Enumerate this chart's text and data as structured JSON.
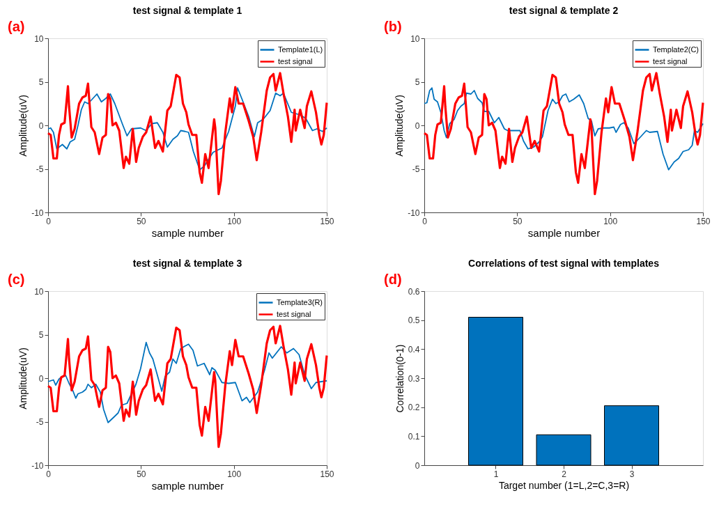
{
  "chart_data": [
    {
      "type": "line",
      "title": "test signal & template 1",
      "xlabel": "sample number",
      "ylabel": "Amplitude(uV)",
      "annotations": [
        "(a)"
      ],
      "xlim": [
        0,
        150
      ],
      "xticks": [
        0,
        50,
        100,
        150
      ],
      "ylim": [
        -10,
        10
      ],
      "yticks": [
        -10,
        -5,
        0,
        5,
        10
      ],
      "grid": false,
      "legend": "top right",
      "line_style": "solid",
      "series": [
        {
          "name": "Template1(L)",
          "color": "#0072bd",
          "x": [
            0,
            1.4,
            2.9,
            4.7,
            7.7,
            10.1,
            11.9,
            14.3,
            16.1,
            17.9,
            19.7,
            21.5,
            23.3,
            26.3,
            28.7,
            31.1,
            33.5,
            35.9,
            40.1,
            42.5,
            44.9,
            49.8,
            52.8,
            55.8,
            58.8,
            61.8,
            64.2,
            67.2,
            69.6,
            71.4,
            73.8,
            75.6,
            78.2,
            81.6,
            84.0,
            88.8,
            93.6,
            97.2,
            100.8,
            102.0,
            104.4,
            108.0,
            111.0,
            112.8,
            115.8,
            119.5,
            122.5,
            124.9,
            126.7,
            130.9,
            135.7,
            138.7,
            142.3,
            144.7,
            147.7,
            150
          ],
          "values": [
            -0.4,
            -0.3,
            -0.8,
            -2.7,
            -2.2,
            -2.7,
            -1.9,
            -1.6,
            0.0,
            1.8,
            2.7,
            2.5,
            2.9,
            3.6,
            2.7,
            3.1,
            3.6,
            2.5,
            0.1,
            -1.2,
            -0.4,
            -0.3,
            -0.6,
            0.2,
            0.3,
            -0.8,
            -2.5,
            -1.6,
            -1.2,
            -0.6,
            -0.7,
            -0.8,
            -3.0,
            -5.1,
            -4.7,
            -3.1,
            -2.6,
            -0.7,
            2.2,
            4.3,
            3.0,
            1.0,
            -1.3,
            0.3,
            0.7,
            1.7,
            3.7,
            3.4,
            3.7,
            1.5,
            1.2,
            0.8,
            -0.6,
            -0.4,
            -0.7,
            -0.3
          ]
        },
        {
          "name": "test signal",
          "color": "#ff0000",
          "x": [
            0,
            1.4,
            2.9,
            4.7,
            5.9,
            7.1,
            8.9,
            10.7,
            11.3,
            12.7,
            14.3,
            16.7,
            18.5,
            20.3,
            21.5,
            23.3,
            25.1,
            27.5,
            29.3,
            31.1,
            32.3,
            33.5,
            34.7,
            36.5,
            38.3,
            40.7,
            41.9,
            43.7,
            45.6,
            47.4,
            48.8,
            51.0,
            52.8,
            55.2,
            56.4,
            57.6,
            59.4,
            61.8,
            64.2,
            66.0,
            69.0,
            70.8,
            72.6,
            74.4,
            75.6,
            77.6,
            79.8,
            81.6,
            82.8,
            84.6,
            86.4,
            89.4,
            90.0,
            91.8,
            93.0,
            95.4,
            97.8,
            99.0,
            100.8,
            102.6,
            105.0,
            108.0,
            110.4,
            112.3,
            114.7,
            117.7,
            119.5,
            121.3,
            122.5,
            124.9,
            126.7,
            129.1,
            130.9,
            132.7,
            133.3,
            135.7,
            138.1,
            139.3,
            141.7,
            144.2,
            146.0,
            147.1,
            148.4,
            150
          ],
          "values": [
            -0.9,
            -1.1,
            -3.8,
            -3.8,
            -1.1,
            0.1,
            0.3,
            4.5,
            2.2,
            -1.4,
            -0.4,
            2.5,
            3.2,
            3.4,
            4.8,
            -0.2,
            -0.8,
            -3.3,
            -1.4,
            -1.1,
            3.6,
            3.0,
            0.0,
            0.3,
            -0.6,
            -4.9,
            -3.6,
            -4.4,
            -0.4,
            -4.2,
            -2.6,
            -1.3,
            -0.8,
            1.0,
            -0.8,
            -2.6,
            -1.8,
            -3.0,
            1.7,
            2.2,
            5.8,
            5.5,
            2.5,
            1.5,
            0.1,
            -1.1,
            -1.1,
            -5.4,
            -6.6,
            -3.3,
            -4.9,
            0.7,
            -0.3,
            -7.9,
            -6.4,
            -0.8,
            3.1,
            1.5,
            4.4,
            2.5,
            2.5,
            0.5,
            -1.3,
            -4.0,
            -0.8,
            4.0,
            5.5,
            5.9,
            4.0,
            6.0,
            3.7,
            1.0,
            -1.9,
            1.8,
            -0.6,
            1.8,
            -0.3,
            2.2,
            3.9,
            1.5,
            -1.1,
            -2.2,
            -1.1,
            2.6
          ]
        }
      ]
    },
    {
      "type": "line",
      "title": "test signal & template 2",
      "xlabel": "sample number",
      "ylabel": "Amplitude(uV)",
      "annotations": [
        "(b)"
      ],
      "xlim": [
        0,
        150
      ],
      "xticks": [
        0,
        50,
        100,
        150
      ],
      "ylim": [
        -10,
        10
      ],
      "yticks": [
        -10,
        -5,
        0,
        5,
        10
      ],
      "grid": false,
      "legend": "top right",
      "line_style": "solid",
      "series": [
        {
          "name": "Template2(C)",
          "color": "#0072bd",
          "x": [
            0,
            1.4,
            2.9,
            4.1,
            5.3,
            7.1,
            8.9,
            10.7,
            11.9,
            13.7,
            16.1,
            17.9,
            19.7,
            21.5,
            22.7,
            25.1,
            26.9,
            28.7,
            31.1,
            32.3,
            34.7,
            37.7,
            40.1,
            43.1,
            44.9,
            48.5,
            51.5,
            53.4,
            55.8,
            58.8,
            61.8,
            63.6,
            66.6,
            69.0,
            70.8,
            72.6,
            74.4,
            76.2,
            78.0,
            80.4,
            83.4,
            85.8,
            88.2,
            90.0,
            91.8,
            93.6,
            96.6,
            99.6,
            102.0,
            103.2,
            105.6,
            107.4,
            109.8,
            112.8,
            114.7,
            116.5,
            119.5,
            121.3,
            125.5,
            128.5,
            131.5,
            134.5,
            136.9,
            139.3,
            142.3,
            144.2,
            145.4,
            147.1,
            150
          ],
          "values": [
            2.5,
            2.6,
            4.0,
            4.3,
            3.0,
            2.7,
            1.5,
            -0.6,
            -1.4,
            0.2,
            0.7,
            1.7,
            2.2,
            2.5,
            3.7,
            3.6,
            4.0,
            3.1,
            2.6,
            1.6,
            1.6,
            0.3,
            0.9,
            -0.4,
            -0.6,
            -0.6,
            -0.6,
            -1.8,
            -2.7,
            -2.5,
            -1.9,
            -1.3,
            1.7,
            3.0,
            2.5,
            2.7,
            3.4,
            3.6,
            2.7,
            3.0,
            3.5,
            2.5,
            0.8,
            0.5,
            -1.2,
            -0.4,
            -0.3,
            -0.3,
            -0.2,
            -0.8,
            0.1,
            0.3,
            -0.3,
            -2.1,
            -1.7,
            -1.3,
            -0.6,
            -0.8,
            -0.7,
            -3.3,
            -5.1,
            -4.2,
            -3.8,
            -3.0,
            -2.8,
            -2.3,
            -0.6,
            -0.8,
            0.2
          ]
        },
        {
          "name": "test signal",
          "color": "#ff0000",
          "x": [
            0,
            1.4,
            2.9,
            4.7,
            5.9,
            7.1,
            8.9,
            10.7,
            11.3,
            12.7,
            14.3,
            16.7,
            18.5,
            20.3,
            21.5,
            23.3,
            25.1,
            27.5,
            29.3,
            31.1,
            32.3,
            33.5,
            34.7,
            36.5,
            38.3,
            40.7,
            41.9,
            43.7,
            45.6,
            47.4,
            48.8,
            51.0,
            52.8,
            55.2,
            56.4,
            57.6,
            59.4,
            61.8,
            64.2,
            66.0,
            69.0,
            70.8,
            72.6,
            74.4,
            75.6,
            77.6,
            79.8,
            81.6,
            82.8,
            84.6,
            86.4,
            89.4,
            90.0,
            91.8,
            93.0,
            95.4,
            97.8,
            99.0,
            100.8,
            102.6,
            105.0,
            108.0,
            110.4,
            112.3,
            114.7,
            117.7,
            119.5,
            121.3,
            122.5,
            124.9,
            126.7,
            129.1,
            130.9,
            132.7,
            133.3,
            135.7,
            138.1,
            139.3,
            141.7,
            144.2,
            146.0,
            147.1,
            148.4,
            150
          ],
          "values": [
            -0.9,
            -1.1,
            -3.8,
            -3.8,
            -1.1,
            0.1,
            0.3,
            4.5,
            2.2,
            -1.4,
            -0.4,
            2.5,
            3.2,
            3.4,
            4.8,
            -0.2,
            -0.8,
            -3.3,
            -1.4,
            -1.1,
            3.6,
            3.0,
            0.0,
            0.3,
            -0.6,
            -4.9,
            -3.6,
            -4.4,
            -0.4,
            -4.2,
            -2.6,
            -1.3,
            -0.8,
            1.0,
            -0.8,
            -2.6,
            -1.8,
            -3.0,
            1.7,
            2.2,
            5.8,
            5.5,
            2.5,
            1.5,
            0.1,
            -1.1,
            -1.1,
            -5.4,
            -6.6,
            -3.3,
            -4.9,
            0.7,
            -0.3,
            -7.9,
            -6.4,
            -0.8,
            3.1,
            1.5,
            4.4,
            2.5,
            2.5,
            0.5,
            -1.3,
            -4.0,
            -0.8,
            4.0,
            5.5,
            5.9,
            4.0,
            6.0,
            3.7,
            1.0,
            -1.9,
            1.8,
            -0.6,
            1.8,
            -0.3,
            2.2,
            3.9,
            1.5,
            -1.1,
            -2.2,
            -1.1,
            2.6
          ]
        }
      ]
    },
    {
      "type": "line",
      "title": "test signal & template 3",
      "xlabel": "sample number",
      "ylabel": "Amplitude(uV)",
      "annotations": [
        "(c)"
      ],
      "xlim": [
        0,
        150
      ],
      "xticks": [
        0,
        50,
        100,
        150
      ],
      "ylim": [
        -10,
        10
      ],
      "yticks": [
        -10,
        -5,
        0,
        5,
        10
      ],
      "grid": false,
      "legend": "top right",
      "line_style": "solid",
      "series": [
        {
          "name": "Template3(R)",
          "color": "#0072bd",
          "x": [
            0,
            1.4,
            2.9,
            4.1,
            5.9,
            7.7,
            9.5,
            11.3,
            13.1,
            14.9,
            16.1,
            18.5,
            20.3,
            21.5,
            23.3,
            25.7,
            28.1,
            29.9,
            32.3,
            35.3,
            37.7,
            39.5,
            42.5,
            44.9,
            47.3,
            49.8,
            52.8,
            54.6,
            56.4,
            59.4,
            61.2,
            63.0,
            65.4,
            67.2,
            69.0,
            71.4,
            73.8,
            75.6,
            78.0,
            80.4,
            84.0,
            87.0,
            88.2,
            90.0,
            93.6,
            97.2,
            100.8,
            104.4,
            106.8,
            108.6,
            112.8,
            116.5,
            118.9,
            120.7,
            125.5,
            128.5,
            132.1,
            135.1,
            138.1,
            141.7,
            144.2,
            150
          ],
          "values": [
            -0.4,
            -0.3,
            -0.2,
            -0.8,
            -0.1,
            0.2,
            0.3,
            -0.6,
            -1.3,
            -2.3,
            -1.8,
            -1.6,
            -1.3,
            -0.7,
            -1.1,
            -0.7,
            -1.6,
            -3.6,
            -5.1,
            -4.5,
            -4.0,
            -3.1,
            -2.9,
            -1.8,
            -0.7,
            1.1,
            4.1,
            2.9,
            2.2,
            -0.1,
            -1.5,
            0.2,
            0.7,
            2.2,
            1.7,
            3.4,
            3.7,
            3.9,
            3.2,
            1.4,
            1.7,
            0.4,
            1.2,
            0.9,
            -0.5,
            -0.6,
            -0.5,
            -2.6,
            -2.2,
            -2.8,
            -1.6,
            0.9,
            2.9,
            2.3,
            3.6,
            2.9,
            3.4,
            2.7,
            0.4,
            -1.2,
            -0.5,
            -0.3
          ]
        },
        {
          "name": "test signal",
          "color": "#ff0000",
          "x": [
            0,
            1.4,
            2.9,
            4.7,
            5.9,
            7.1,
            8.9,
            10.7,
            11.3,
            12.7,
            14.3,
            16.7,
            18.5,
            20.3,
            21.5,
            23.3,
            25.1,
            27.5,
            29.3,
            31.1,
            32.3,
            33.5,
            34.7,
            36.5,
            38.3,
            40.7,
            41.9,
            43.7,
            45.6,
            47.4,
            48.8,
            51.0,
            52.8,
            55.2,
            56.4,
            57.6,
            59.4,
            61.8,
            64.2,
            66.0,
            69.0,
            70.8,
            72.6,
            74.4,
            75.6,
            77.6,
            79.8,
            81.6,
            82.8,
            84.6,
            86.4,
            89.4,
            90.0,
            91.8,
            93.0,
            95.4,
            97.8,
            99.0,
            100.8,
            102.6,
            105.0,
            108.0,
            110.4,
            112.3,
            114.7,
            117.7,
            119.5,
            121.3,
            122.5,
            124.9,
            126.7,
            129.1,
            130.9,
            132.7,
            133.3,
            135.7,
            138.1,
            139.3,
            141.7,
            144.2,
            146.0,
            147.1,
            148.4,
            150
          ],
          "values": [
            -0.9,
            -1.1,
            -3.8,
            -3.8,
            -1.1,
            0.1,
            0.3,
            4.5,
            2.2,
            -1.4,
            -0.4,
            2.5,
            3.2,
            3.4,
            4.8,
            -0.2,
            -0.8,
            -3.3,
            -1.4,
            -1.1,
            3.6,
            3.0,
            0.0,
            0.3,
            -0.6,
            -4.9,
            -3.6,
            -4.4,
            -0.4,
            -4.2,
            -2.6,
            -1.3,
            -0.8,
            1.0,
            -0.8,
            -2.6,
            -1.8,
            -3.0,
            1.7,
            2.2,
            5.8,
            5.5,
            2.5,
            1.5,
            0.1,
            -1.1,
            -1.1,
            -5.4,
            -6.6,
            -3.3,
            -4.9,
            0.7,
            -0.3,
            -7.9,
            -6.4,
            -0.8,
            3.1,
            1.5,
            4.4,
            2.5,
            2.5,
            0.5,
            -1.3,
            -4.0,
            -0.8,
            4.0,
            5.5,
            5.9,
            4.0,
            6.0,
            3.7,
            1.0,
            -1.9,
            1.8,
            -0.6,
            1.8,
            -0.3,
            2.2,
            3.9,
            1.5,
            -1.1,
            -2.2,
            -1.1,
            2.6
          ]
        }
      ]
    },
    {
      "type": "bar",
      "title": "Correlations of test signal with templates",
      "xlabel": "Target number (1=L,2=C,3=R)",
      "ylabel": "Correlation(0-1)",
      "annotations": [
        "(d)"
      ],
      "categories": [
        "1",
        "2",
        "3"
      ],
      "values": [
        0.51,
        0.105,
        0.205
      ],
      "color": "#0072bd",
      "ylim": [
        0,
        0.6
      ],
      "yticks": [
        0,
        0.1,
        0.2,
        0.3,
        0.4,
        0.5,
        0.6
      ],
      "grid": false
    }
  ]
}
